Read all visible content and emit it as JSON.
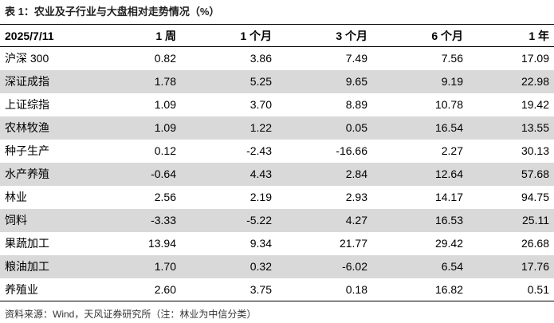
{
  "title": "表 1：农业及子行业与大盘相对走势情况（%）",
  "table": {
    "header": [
      "2025/7/11",
      "1 周",
      "1 个月",
      "3 个月",
      "6 个月",
      "1 年"
    ],
    "rows": [
      [
        "沪深 300",
        "0.82",
        "3.86",
        "7.49",
        "7.56",
        "17.09"
      ],
      [
        "深证成指",
        "1.78",
        "5.25",
        "9.65",
        "9.19",
        "22.98"
      ],
      [
        "上证综指",
        "1.09",
        "3.70",
        "8.89",
        "10.78",
        "19.42"
      ],
      [
        "农林牧渔",
        "1.09",
        "1.22",
        "0.05",
        "16.54",
        "13.55"
      ],
      [
        "种子生产",
        "0.12",
        "-2.43",
        "-16.66",
        "2.27",
        "30.13"
      ],
      [
        "水产养殖",
        "-0.64",
        "4.43",
        "2.84",
        "12.64",
        "57.68"
      ],
      [
        "林业",
        "2.56",
        "2.19",
        "2.93",
        "14.17",
        "94.75"
      ],
      [
        "饲料",
        "-3.33",
        "-5.22",
        "4.27",
        "16.53",
        "25.11"
      ],
      [
        "果蔬加工",
        "13.94",
        "9.34",
        "21.77",
        "29.42",
        "26.68"
      ],
      [
        "粮油加工",
        "1.70",
        "0.32",
        "-6.02",
        "6.54",
        "17.76"
      ],
      [
        "养殖业",
        "2.60",
        "3.75",
        "0.18",
        "16.82",
        "0.51"
      ]
    ]
  },
  "footer": "资料来源：Wind，天风证券研究所（注：林业为中信分类）"
}
